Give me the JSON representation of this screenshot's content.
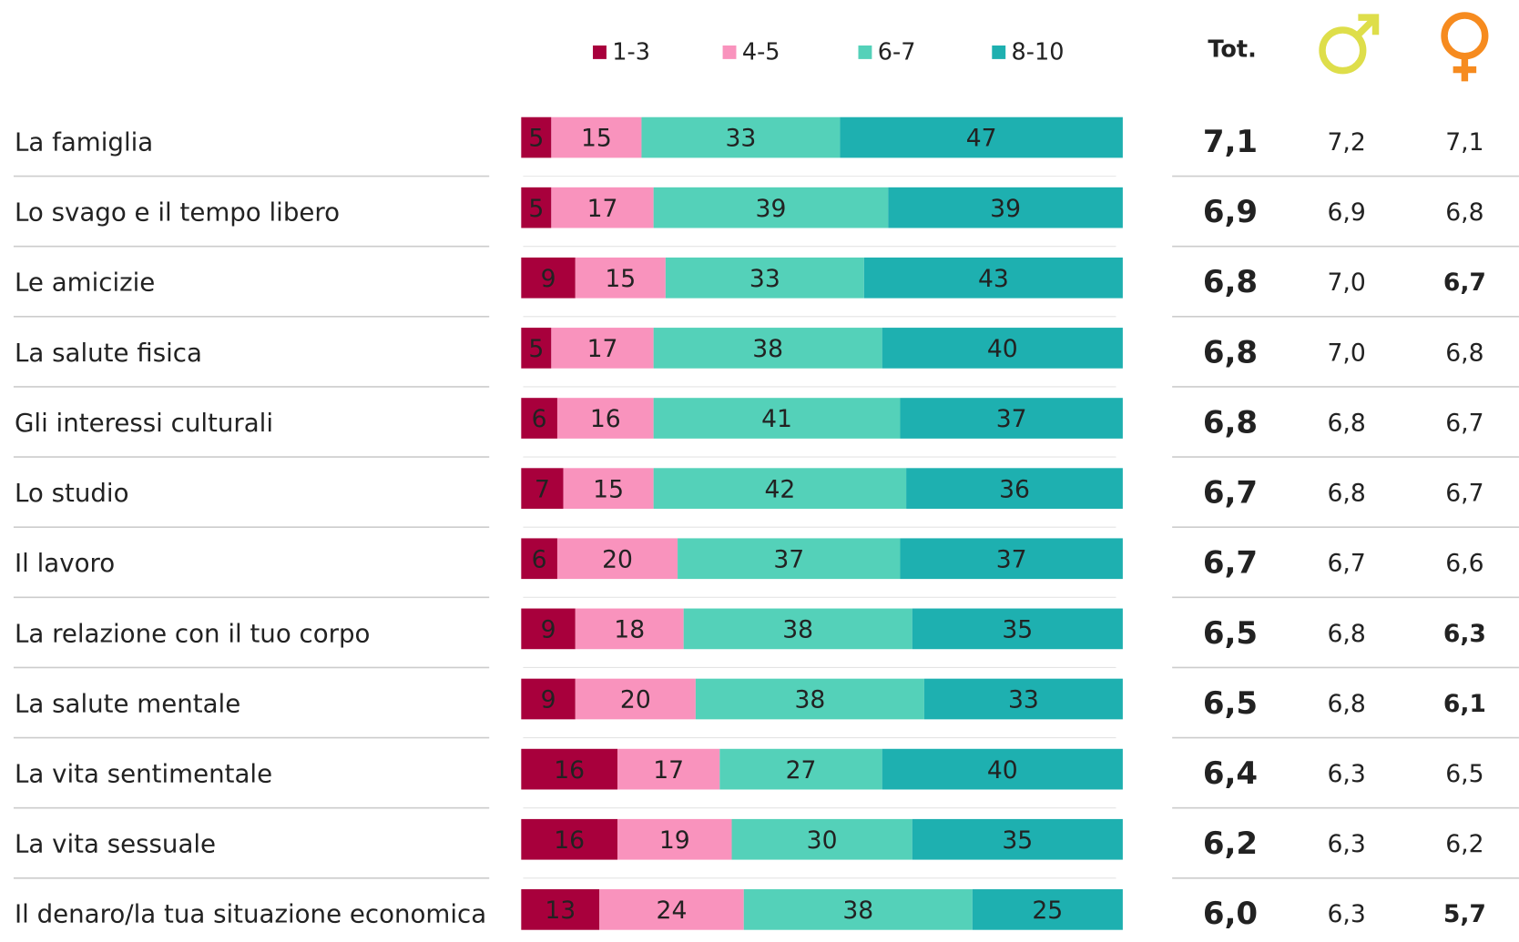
{
  "chart_data": {
    "type": "stacked-bar-horizontal",
    "categories": [
      "La famiglia",
      "Lo svago e il tempo libero",
      "Le amicizie",
      "La salute fisica",
      "Gli interessi culturali",
      "Lo studio",
      "Il lavoro",
      "La relazione con il tuo corpo",
      "La salute mentale",
      "La vita sentimentale",
      "La vita sessuale",
      "Il denaro/la tua situazione economica"
    ],
    "xlim": [
      0,
      100
    ],
    "series": [
      {
        "name": "1-3",
        "color": "#a8003c",
        "label_color": "#ffffff",
        "values": [
          5,
          5,
          9,
          5,
          6,
          7,
          6,
          9,
          9,
          16,
          16,
          13
        ]
      },
      {
        "name": "4-5",
        "color": "#f993bd",
        "label_color": "#333333",
        "values": [
          15,
          17,
          15,
          17,
          16,
          15,
          20,
          18,
          20,
          17,
          19,
          24
        ]
      },
      {
        "name": "6-7",
        "color": "#54d1b9",
        "label_color": "#333333",
        "values": [
          33,
          39,
          33,
          38,
          41,
          42,
          37,
          38,
          38,
          27,
          30,
          38
        ]
      },
      {
        "name": "8-10",
        "color": "#1eb0b0",
        "label_color": "#333333",
        "values": [
          47,
          39,
          43,
          40,
          37,
          36,
          37,
          35,
          33,
          40,
          35,
          25
        ]
      }
    ],
    "columns": [
      {
        "name": "Tot.",
        "color": "#1fb0b0",
        "values": [
          7.1,
          6.9,
          6.8,
          6.8,
          6.8,
          6.7,
          6.7,
          6.5,
          6.5,
          6.4,
          6.2,
          6.0
        ],
        "value_labels": [
          "7,1",
          "6,9",
          "6,8",
          "6,8",
          "6,8",
          "6,7",
          "6,7",
          "6,5",
          "6,5",
          "6,4",
          "6,2",
          "6,0"
        ]
      },
      {
        "color": "#222222",
        "values": [
          7.2,
          6.9,
          7.0,
          7.0,
          6.8,
          6.8,
          6.7,
          6.8,
          6.8,
          6.3,
          6.3,
          6.3
        ],
        "value_labels": [
          "7,2",
          "6,9",
          "7,0",
          "7,0",
          "6,8",
          "6,8",
          "6,7",
          "6,8",
          "6,8",
          "6,3",
          "6,3",
          "6,3"
        ]
      },
      {
        "color": "#222222",
        "values": [
          7.1,
          6.8,
          6.7,
          6.8,
          6.7,
          6.7,
          6.6,
          6.3,
          6.1,
          6.5,
          6.2,
          5.7
        ],
        "value_labels": [
          "7,1",
          "6,8",
          "6,7",
          "6,8",
          "6,7",
          "6,7",
          "6,6",
          "6,3",
          "6,1",
          "6,5",
          "6,2",
          "5,7"
        ],
        "bold": [
          false,
          false,
          true,
          false,
          false,
          false,
          false,
          true,
          true,
          false,
          false,
          true
        ]
      }
    ]
  }
}
